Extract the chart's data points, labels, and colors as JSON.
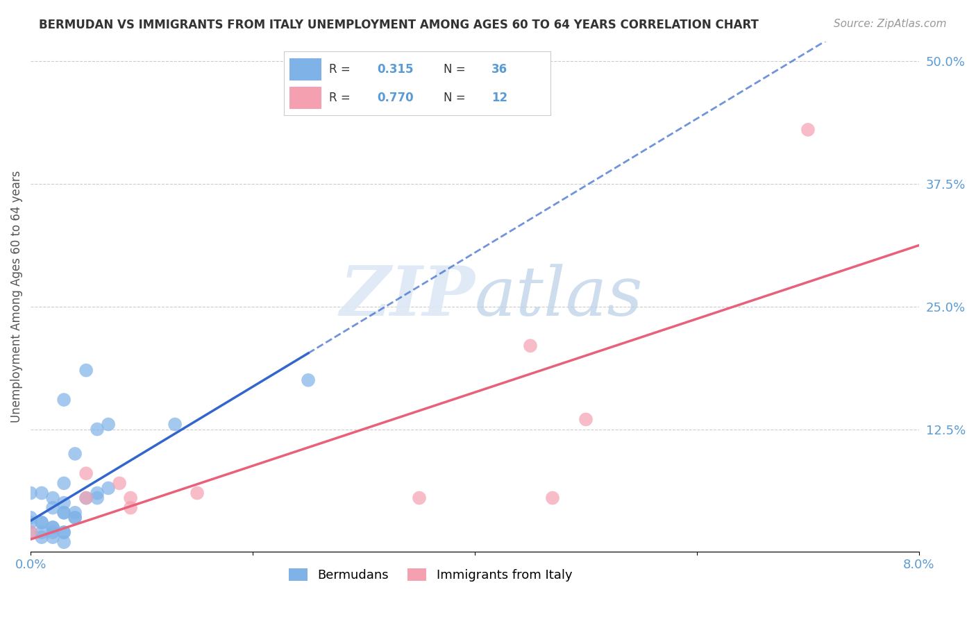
{
  "title": "BERMUDAN VS IMMIGRANTS FROM ITALY UNEMPLOYMENT AMONG AGES 60 TO 64 YEARS CORRELATION CHART",
  "source": "Source: ZipAtlas.com",
  "xlabel_bottom": "",
  "ylabel": "Unemployment Among Ages 60 to 64 years",
  "xlim": [
    0.0,
    0.08
  ],
  "ylim": [
    0.0,
    0.52
  ],
  "xticks": [
    0.0,
    0.02,
    0.04,
    0.06,
    0.08
  ],
  "xtick_labels": [
    "0.0%",
    "",
    "",
    "",
    "8.0%"
  ],
  "ytick_labels_right": [
    "50.0%",
    "37.5%",
    "25.0%",
    "12.5%",
    ""
  ],
  "yticks_right": [
    0.5,
    0.375,
    0.25,
    0.125,
    0.0
  ],
  "legend_labels": [
    "Bermudans",
    "Immigrants from Italy"
  ],
  "R_blue": "0.315",
  "N_blue": "36",
  "R_pink": "0.770",
  "N_pink": "12",
  "blue_color": "#7fb3e8",
  "pink_color": "#f4a0b0",
  "blue_line_color": "#3366cc",
  "pink_line_color": "#e8607a",
  "watermark": "ZIPatlas",
  "blue_scatter_x": [
    0.0,
    0.0,
    0.005,
    0.003,
    0.003,
    0.004,
    0.005,
    0.006,
    0.007,
    0.0,
    0.001,
    0.002,
    0.002,
    0.003,
    0.003,
    0.003,
    0.004,
    0.004,
    0.004,
    0.0,
    0.001,
    0.001,
    0.002,
    0.002,
    0.002,
    0.003,
    0.003,
    0.001,
    0.001,
    0.002,
    0.003,
    0.006,
    0.025,
    0.013,
    0.007,
    0.006
  ],
  "blue_scatter_y": [
    0.02,
    0.03,
    0.185,
    0.155,
    0.07,
    0.1,
    0.055,
    0.055,
    0.065,
    0.06,
    0.06,
    0.055,
    0.045,
    0.04,
    0.04,
    0.05,
    0.04,
    0.035,
    0.035,
    0.035,
    0.03,
    0.03,
    0.025,
    0.025,
    0.02,
    0.02,
    0.02,
    0.02,
    0.015,
    0.015,
    0.01,
    0.06,
    0.175,
    0.13,
    0.13,
    0.125
  ],
  "pink_scatter_x": [
    0.0,
    0.005,
    0.005,
    0.008,
    0.009,
    0.009,
    0.015,
    0.035,
    0.045,
    0.047,
    0.05,
    0.07
  ],
  "pink_scatter_y": [
    0.02,
    0.055,
    0.08,
    0.07,
    0.055,
    0.045,
    0.06,
    0.055,
    0.21,
    0.055,
    0.135,
    0.43
  ]
}
